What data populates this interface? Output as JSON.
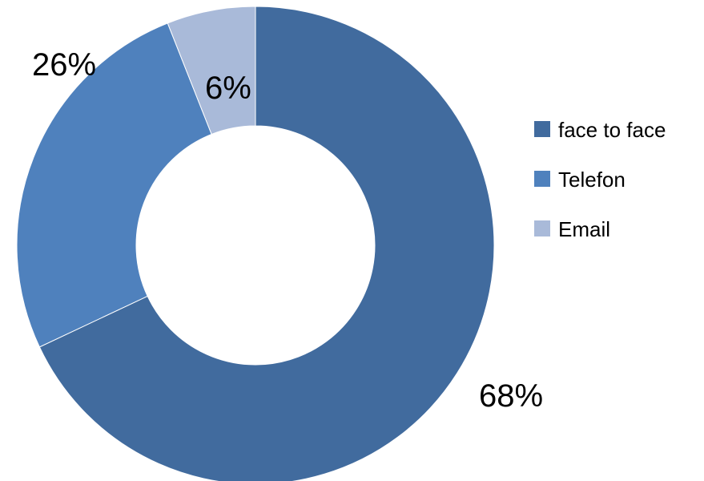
{
  "chart_data": {
    "type": "pie",
    "variant": "donut",
    "start_angle_deg": 0,
    "direction": "clockwise",
    "legend_placement": "right",
    "slices": [
      {
        "label": "face to face",
        "value": 68,
        "value_label": "68%",
        "color": "#416b9e"
      },
      {
        "label": "Telefon",
        "value": 26,
        "value_label": "26%",
        "color": "#4f81bd"
      },
      {
        "label": "Email",
        "value": 6,
        "value_label": "6%",
        "color": "#a9bad9"
      }
    ]
  }
}
